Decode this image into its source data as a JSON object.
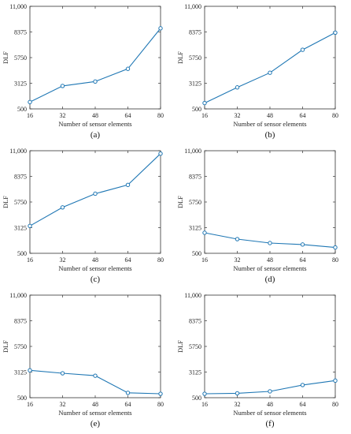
{
  "figure": {
    "series_color": "#1f77b4",
    "chart_data": [
      {
        "type": "line",
        "panel_label": "(a)",
        "xlabel": "Number of sensor elements",
        "ylabel": "DLF",
        "x": [
          16,
          32,
          48,
          64,
          80
        ],
        "y": [
          1200,
          2850,
          3300,
          4600,
          8750
        ],
        "ylim": [
          500,
          11000
        ],
        "xlim": [
          16,
          80
        ],
        "yticks": [
          "500",
          "3125",
          "5750",
          "8375",
          "11,000"
        ],
        "xticks": [
          "16",
          "32",
          "48",
          "64",
          "80"
        ],
        "grid": false
      },
      {
        "type": "line",
        "panel_label": "(b)",
        "xlabel": "Number of sensor elements",
        "ylabel": "DLF",
        "x": [
          16,
          32,
          48,
          64,
          80
        ],
        "y": [
          1100,
          2700,
          4200,
          6550,
          8300
        ],
        "ylim": [
          500,
          11000
        ],
        "xlim": [
          16,
          80
        ],
        "yticks": [
          "500",
          "3125",
          "5750",
          "8375",
          "11,000"
        ],
        "xticks": [
          "16",
          "32",
          "48",
          "64",
          "80"
        ],
        "grid": false
      },
      {
        "type": "line",
        "panel_label": "(c)",
        "xlabel": "Number of sensor elements",
        "ylabel": "DLF",
        "x": [
          16,
          32,
          48,
          64,
          80
        ],
        "y": [
          3300,
          5200,
          6600,
          7500,
          10700
        ],
        "ylim": [
          500,
          11000
        ],
        "xlim": [
          16,
          80
        ],
        "yticks": [
          "500",
          "3125",
          "5750",
          "8375",
          "11,000"
        ],
        "xticks": [
          "16",
          "32",
          "48",
          "64",
          "80"
        ],
        "grid": false
      },
      {
        "type": "line",
        "panel_label": "(d)",
        "xlabel": "Number of sensor elements",
        "ylabel": "DLF",
        "x": [
          16,
          32,
          48,
          64,
          80
        ],
        "y": [
          2600,
          1950,
          1550,
          1400,
          1100
        ],
        "ylim": [
          500,
          11000
        ],
        "xlim": [
          16,
          80
        ],
        "yticks": [
          "500",
          "3125",
          "5750",
          "8375",
          "11,000"
        ],
        "xticks": [
          "16",
          "32",
          "48",
          "64",
          "80"
        ],
        "grid": false
      },
      {
        "type": "line",
        "panel_label": "(e)",
        "xlabel": "Number of sensor elements",
        "ylabel": "DLF",
        "x": [
          16,
          32,
          48,
          64,
          80
        ],
        "y": [
          3300,
          3000,
          2750,
          1000,
          900
        ],
        "ylim": [
          500,
          11000
        ],
        "xlim": [
          16,
          80
        ],
        "yticks": [
          "500",
          "3125",
          "5750",
          "8375",
          "11,000"
        ],
        "xticks": [
          "16",
          "32",
          "48",
          "64",
          "80"
        ],
        "grid": false
      },
      {
        "type": "line",
        "panel_label": "(f)",
        "xlabel": "Number of sensor elements",
        "ylabel": "DLF",
        "x": [
          16,
          32,
          48,
          64,
          80
        ],
        "y": [
          900,
          950,
          1150,
          1800,
          2250
        ],
        "ylim": [
          500,
          11000
        ],
        "xlim": [
          16,
          80
        ],
        "yticks": [
          "500",
          "3125",
          "5750",
          "8375",
          "11,000"
        ],
        "xticks": [
          "16",
          "32",
          "48",
          "64",
          "80"
        ],
        "grid": false
      }
    ]
  }
}
